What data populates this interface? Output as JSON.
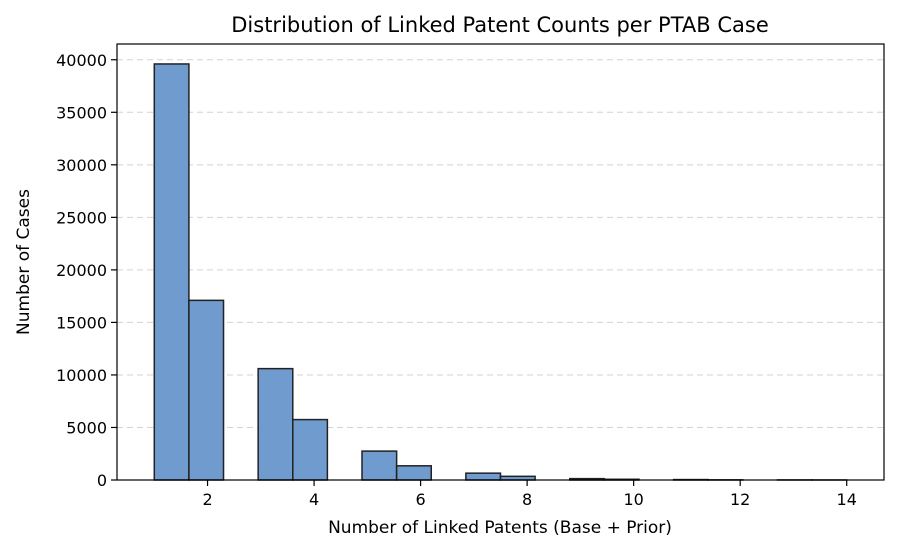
{
  "chart_data": {
    "type": "bar",
    "title": "Distribution of Linked Patent Counts per PTAB Case",
    "xlabel": "Number of Linked Patents (Base + Prior)",
    "ylabel": "Number of Cases",
    "xlim": [
      0.3,
      14.7
    ],
    "ylim": [
      0,
      41500
    ],
    "xticks": [
      2,
      4,
      6,
      8,
      10,
      12,
      14
    ],
    "yticks": [
      0,
      5000,
      10000,
      15000,
      20000,
      25000,
      30000,
      35000,
      40000
    ],
    "grid": "y, dashed",
    "bar_color": "#6f9bcf",
    "bar_edge_color": "#222222",
    "bins": [
      {
        "x0": 1.0,
        "x1": 1.65,
        "value": 39600
      },
      {
        "x0": 1.65,
        "x1": 2.3,
        "value": 17100
      },
      {
        "x0": 2.3,
        "x1": 2.95,
        "value": 0
      },
      {
        "x0": 2.95,
        "x1": 3.6,
        "value": 10600
      },
      {
        "x0": 3.6,
        "x1": 4.25,
        "value": 5750
      },
      {
        "x0": 4.25,
        "x1": 4.9,
        "value": 0
      },
      {
        "x0": 4.9,
        "x1": 5.55,
        "value": 2750
      },
      {
        "x0": 5.55,
        "x1": 6.2,
        "value": 1350
      },
      {
        "x0": 6.2,
        "x1": 6.85,
        "value": 0
      },
      {
        "x0": 6.85,
        "x1": 7.5,
        "value": 650
      },
      {
        "x0": 7.5,
        "x1": 8.15,
        "value": 350
      },
      {
        "x0": 8.15,
        "x1": 8.8,
        "value": 0
      },
      {
        "x0": 8.8,
        "x1": 9.45,
        "value": 130
      },
      {
        "x0": 9.45,
        "x1": 10.1,
        "value": 70
      },
      {
        "x0": 10.1,
        "x1": 10.75,
        "value": 0
      },
      {
        "x0": 10.75,
        "x1": 11.4,
        "value": 40
      },
      {
        "x0": 11.4,
        "x1": 12.05,
        "value": 15
      },
      {
        "x0": 12.05,
        "x1": 12.7,
        "value": 0
      },
      {
        "x0": 12.7,
        "x1": 13.35,
        "value": 8
      },
      {
        "x0": 13.35,
        "x1": 14.0,
        "value": 5
      }
    ]
  }
}
